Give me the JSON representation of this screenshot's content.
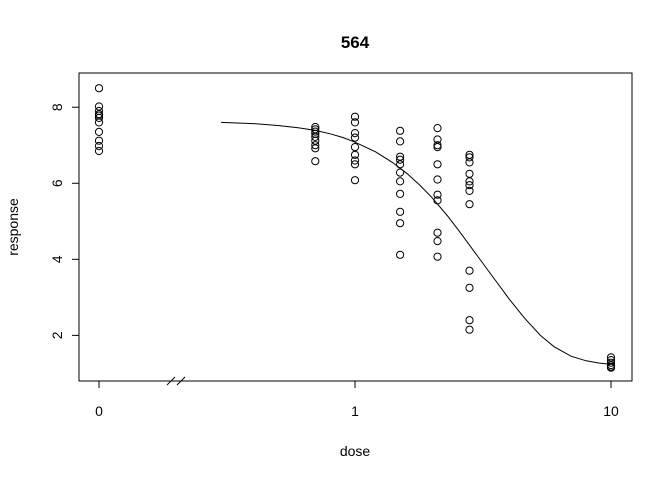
{
  "chart_data": {
    "type": "scatter",
    "title": "564",
    "xlabel": "dose",
    "ylabel": "response",
    "x_scale": "log10 with axis break at 0",
    "x_ticks": [
      "0",
      "1",
      "10"
    ],
    "y_ticks": [
      "2",
      "4",
      "6",
      "8"
    ],
    "ylim": [
      0.8,
      8.9
    ],
    "points": [
      {
        "x": 0,
        "y": 8.5
      },
      {
        "x": 0,
        "y": 8.02
      },
      {
        "x": 0,
        "y": 7.9
      },
      {
        "x": 0,
        "y": 7.82
      },
      {
        "x": 0,
        "y": 7.78
      },
      {
        "x": 0,
        "y": 7.72
      },
      {
        "x": 0,
        "y": 7.6
      },
      {
        "x": 0,
        "y": 7.35
      },
      {
        "x": 0,
        "y": 7.12
      },
      {
        "x": 0,
        "y": 6.98
      },
      {
        "x": 0,
        "y": 6.85
      },
      {
        "x": 0.7,
        "y": 7.48
      },
      {
        "x": 0.7,
        "y": 7.42
      },
      {
        "x": 0.7,
        "y": 7.36
      },
      {
        "x": 0.7,
        "y": 7.3
      },
      {
        "x": 0.7,
        "y": 7.22
      },
      {
        "x": 0.7,
        "y": 7.12
      },
      {
        "x": 0.7,
        "y": 7.0
      },
      {
        "x": 0.7,
        "y": 6.92
      },
      {
        "x": 0.7,
        "y": 6.58
      },
      {
        "x": 1.0,
        "y": 7.75
      },
      {
        "x": 1.0,
        "y": 7.6
      },
      {
        "x": 1.0,
        "y": 7.32
      },
      {
        "x": 1.0,
        "y": 7.2
      },
      {
        "x": 1.0,
        "y": 6.95
      },
      {
        "x": 1.0,
        "y": 6.75
      },
      {
        "x": 1.0,
        "y": 6.6
      },
      {
        "x": 1.0,
        "y": 6.5
      },
      {
        "x": 1.0,
        "y": 6.08
      },
      {
        "x": 1.5,
        "y": 7.38
      },
      {
        "x": 1.5,
        "y": 7.1
      },
      {
        "x": 1.5,
        "y": 6.7
      },
      {
        "x": 1.5,
        "y": 6.62
      },
      {
        "x": 1.5,
        "y": 6.5
      },
      {
        "x": 1.5,
        "y": 6.28
      },
      {
        "x": 1.5,
        "y": 6.05
      },
      {
        "x": 1.5,
        "y": 5.72
      },
      {
        "x": 1.5,
        "y": 5.25
      },
      {
        "x": 1.5,
        "y": 4.95
      },
      {
        "x": 1.5,
        "y": 4.12
      },
      {
        "x": 2.1,
        "y": 7.45
      },
      {
        "x": 2.1,
        "y": 7.15
      },
      {
        "x": 2.1,
        "y": 7.0
      },
      {
        "x": 2.1,
        "y": 6.95
      },
      {
        "x": 2.1,
        "y": 6.5
      },
      {
        "x": 2.1,
        "y": 6.1
      },
      {
        "x": 2.1,
        "y": 5.7
      },
      {
        "x": 2.1,
        "y": 5.55
      },
      {
        "x": 2.1,
        "y": 4.7
      },
      {
        "x": 2.1,
        "y": 4.48
      },
      {
        "x": 2.1,
        "y": 4.07
      },
      {
        "x": 2.8,
        "y": 6.75
      },
      {
        "x": 2.8,
        "y": 6.68
      },
      {
        "x": 2.8,
        "y": 6.55
      },
      {
        "x": 2.8,
        "y": 6.25
      },
      {
        "x": 2.8,
        "y": 6.05
      },
      {
        "x": 2.8,
        "y": 5.95
      },
      {
        "x": 2.8,
        "y": 5.8
      },
      {
        "x": 2.8,
        "y": 5.45
      },
      {
        "x": 2.8,
        "y": 3.7
      },
      {
        "x": 2.8,
        "y": 3.25
      },
      {
        "x": 2.8,
        "y": 2.4
      },
      {
        "x": 2.8,
        "y": 2.15
      },
      {
        "x": 10,
        "y": 1.42
      },
      {
        "x": 10,
        "y": 1.35
      },
      {
        "x": 10,
        "y": 1.28
      },
      {
        "x": 10,
        "y": 1.22
      },
      {
        "x": 10,
        "y": 1.18
      },
      {
        "x": 10,
        "y": 1.15
      }
    ],
    "fit_curve": {
      "x": [
        0.3,
        0.4,
        0.5,
        0.6,
        0.7,
        0.8,
        0.9,
        1.0,
        1.2,
        1.4,
        1.6,
        1.8,
        2.0,
        2.3,
        2.6,
        3.0,
        3.4,
        4.0,
        4.6,
        5.3,
        6.0,
        7.0,
        8.0,
        9.0,
        10.0
      ],
      "y": [
        7.6,
        7.57,
        7.52,
        7.46,
        7.39,
        7.3,
        7.2,
        7.08,
        6.83,
        6.55,
        6.25,
        5.94,
        5.62,
        5.14,
        4.67,
        4.1,
        3.6,
        2.96,
        2.45,
        2.0,
        1.7,
        1.45,
        1.33,
        1.27,
        1.24
      ]
    }
  }
}
